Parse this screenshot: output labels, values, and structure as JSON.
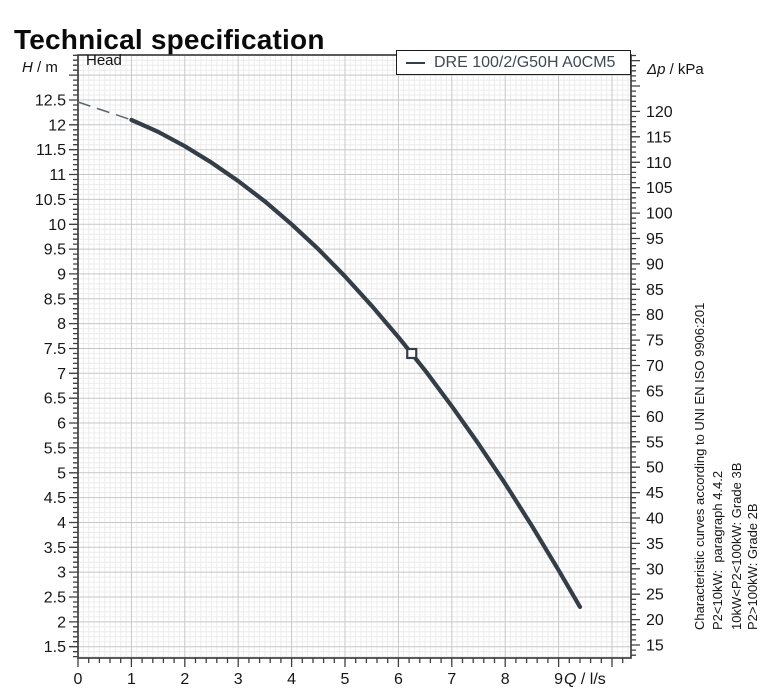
{
  "page": {
    "title": "Technical specification"
  },
  "plot_label": "Head",
  "legend": {
    "label": "DRE 100/2/G50H A0CM5"
  },
  "axes": {
    "left": {
      "symbol": "H",
      "unit": " / m",
      "tick_values": [
        1.5,
        2,
        2.5,
        3,
        3.5,
        4,
        4.5,
        5,
        5.5,
        6,
        6.5,
        7,
        7.5,
        8,
        8.5,
        9,
        9.5,
        10,
        10.5,
        11,
        11.5,
        12,
        12.5
      ]
    },
    "right": {
      "symbol": "Δp",
      "unit": " / kPa",
      "tick_values": [
        15,
        20,
        25,
        30,
        35,
        40,
        45,
        50,
        55,
        60,
        65,
        70,
        75,
        80,
        85,
        90,
        95,
        100,
        105,
        110,
        115,
        120
      ]
    },
    "bottom": {
      "symbol": "Q",
      "unit": " / l/s",
      "tick_values": [
        0,
        1,
        2,
        3,
        4,
        5,
        6,
        7,
        8,
        9
      ]
    }
  },
  "annotations": {
    "lines": [
      "Characteristic curves according to UNI EN ISO 9906:201",
      "P2<10kW:  paragraph 4.4.2",
      "10kW<P2<100kW: Grade 3B",
      "P2>100kW: Grade 2B"
    ]
  },
  "colors": {
    "curve": "#333e48",
    "lead_in": "#5c666e",
    "legend_text": "#3e4a55",
    "grid_minor": "#ececec",
    "grid_major": "#c7c7c7",
    "frame": "#3f3f3f",
    "tick": "#3f3f3f",
    "text": "#161616"
  },
  "chart_data": {
    "type": "line",
    "title": "Head",
    "xlabel": "Q / l/s",
    "ylabel_left": "H / m",
    "ylabel_right": "Δp / kPa",
    "xlim": [
      0,
      10.36
    ],
    "ylim_left_m": [
      1.27,
      13.41
    ],
    "kpa_per_m": 9.78,
    "grid": "minor 0.1 both axes; major every 1.0 l/s and 0.5 m",
    "legend_position": "top-right",
    "series": [
      {
        "name": "DRE 100/2/G50H A0CM5",
        "style": "solid",
        "x": [
          1,
          1.5,
          2,
          2.5,
          3,
          3.5,
          4,
          4.5,
          5,
          5.5,
          6,
          6.5,
          7,
          7.5,
          8,
          8.5,
          9,
          9.4
        ],
        "y": [
          12.1,
          11.86,
          11.57,
          11.24,
          10.87,
          10.46,
          10.0,
          9.5,
          8.95,
          8.36,
          7.73,
          7.06,
          6.34,
          5.58,
          4.78,
          3.93,
          3.04,
          2.3
        ]
      },
      {
        "name": "lead-in",
        "style": "dashed",
        "x": [
          0,
          1
        ],
        "y": [
          12.46,
          12.1
        ]
      }
    ],
    "duty_point": {
      "x": 6.25,
      "y": 7.4,
      "marker": "open-square"
    }
  }
}
